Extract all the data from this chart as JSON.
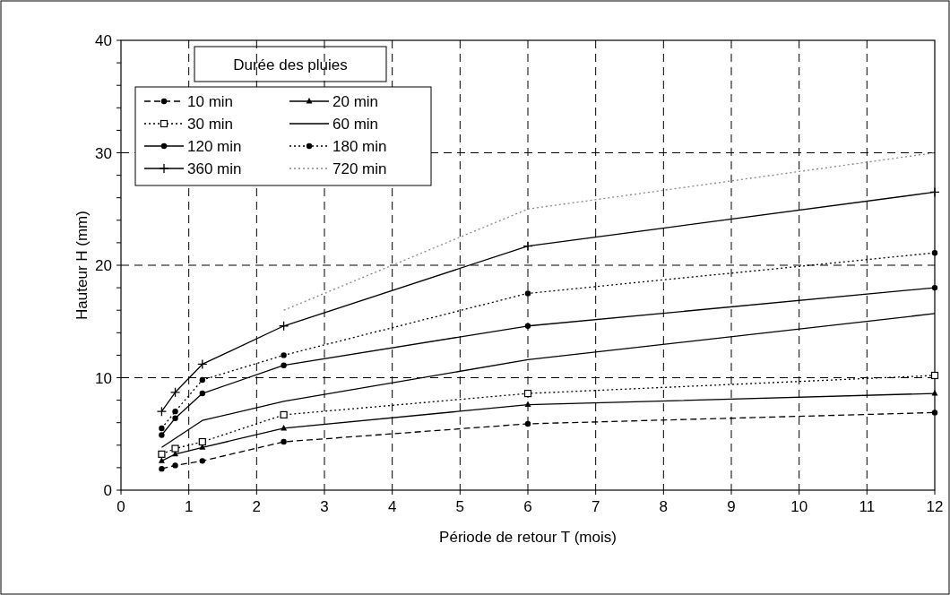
{
  "chart_data": {
    "type": "line",
    "xlabel": "Période de retour T (mois)",
    "ylabel": "Hauteur H (mm)",
    "legend_title": "Durée des pluies",
    "legend": "top left",
    "grid": true,
    "xlim": [
      0,
      12
    ],
    "xticks": [
      0,
      1,
      2,
      3,
      4,
      5,
      6,
      7,
      8,
      9,
      10,
      11,
      12
    ],
    "ylim": [
      0,
      40
    ],
    "yticks": [
      0,
      {
        "value": 2,
        "label": null
      },
      {
        "value": 4,
        "label": null
      },
      {
        "value": 6,
        "label": null
      },
      {
        "value": 8,
        "label": null
      },
      10,
      {
        "value": 12,
        "label": null
      },
      {
        "value": 14,
        "label": null
      },
      {
        "value": 16,
        "label": null
      },
      {
        "value": 18,
        "label": null
      },
      20,
      {
        "value": 22,
        "label": null
      },
      {
        "value": 24,
        "label": null
      },
      {
        "value": 26,
        "label": null
      },
      {
        "value": 28,
        "label": null
      },
      30,
      {
        "value": 32,
        "label": null
      },
      {
        "value": 34,
        "label": null
      },
      {
        "value": 36,
        "label": null
      },
      {
        "value": 38,
        "label": null
      },
      40
    ],
    "x": [
      0.6,
      0.8,
      1.2,
      2.4,
      6,
      12
    ],
    "series": [
      {
        "name": "10 min",
        "color": "#000000",
        "marker": "circle",
        "line_style": "dashed",
        "values": [
          1.9,
          2.2,
          2.6,
          4.3,
          5.9,
          6.9
        ]
      },
      {
        "name": "20 min",
        "color": "#000000",
        "marker": "triangle",
        "line_style": "solid",
        "values": [
          2.6,
          3.2,
          3.8,
          5.5,
          7.6,
          8.6
        ]
      },
      {
        "name": "30 min",
        "color": "#000000",
        "marker": "square",
        "line_style": "dotted",
        "values": [
          3.2,
          3.7,
          4.3,
          6.7,
          8.6,
          10.2
        ]
      },
      {
        "name": "60 min",
        "color": "#000000",
        "marker": "none",
        "line_style": "solid",
        "values": [
          3.8,
          4.6,
          6.2,
          7.9,
          11.6,
          15.7
        ]
      },
      {
        "name": "120 min",
        "color": "#000000",
        "marker": "circle",
        "line_style": "solid",
        "values": [
          4.9,
          6.4,
          8.6,
          11.1,
          14.6,
          18.0
        ]
      },
      {
        "name": "180 min",
        "color": "#000000",
        "marker": "circle",
        "line_style": "dotted",
        "values": [
          5.5,
          7.0,
          9.8,
          12.0,
          17.5,
          21.1
        ]
      },
      {
        "name": "360 min",
        "color": "#000000",
        "marker": "cross",
        "line_style": "solid",
        "values": [
          7.0,
          8.7,
          11.2,
          14.6,
          21.7,
          26.5
        ]
      },
      {
        "name": "720 min",
        "color": "#888888",
        "marker": "none",
        "line_style": "dotted",
        "x": [
          2.4,
          6,
          12
        ],
        "values": [
          16.0,
          25.0,
          30.0
        ]
      }
    ]
  }
}
